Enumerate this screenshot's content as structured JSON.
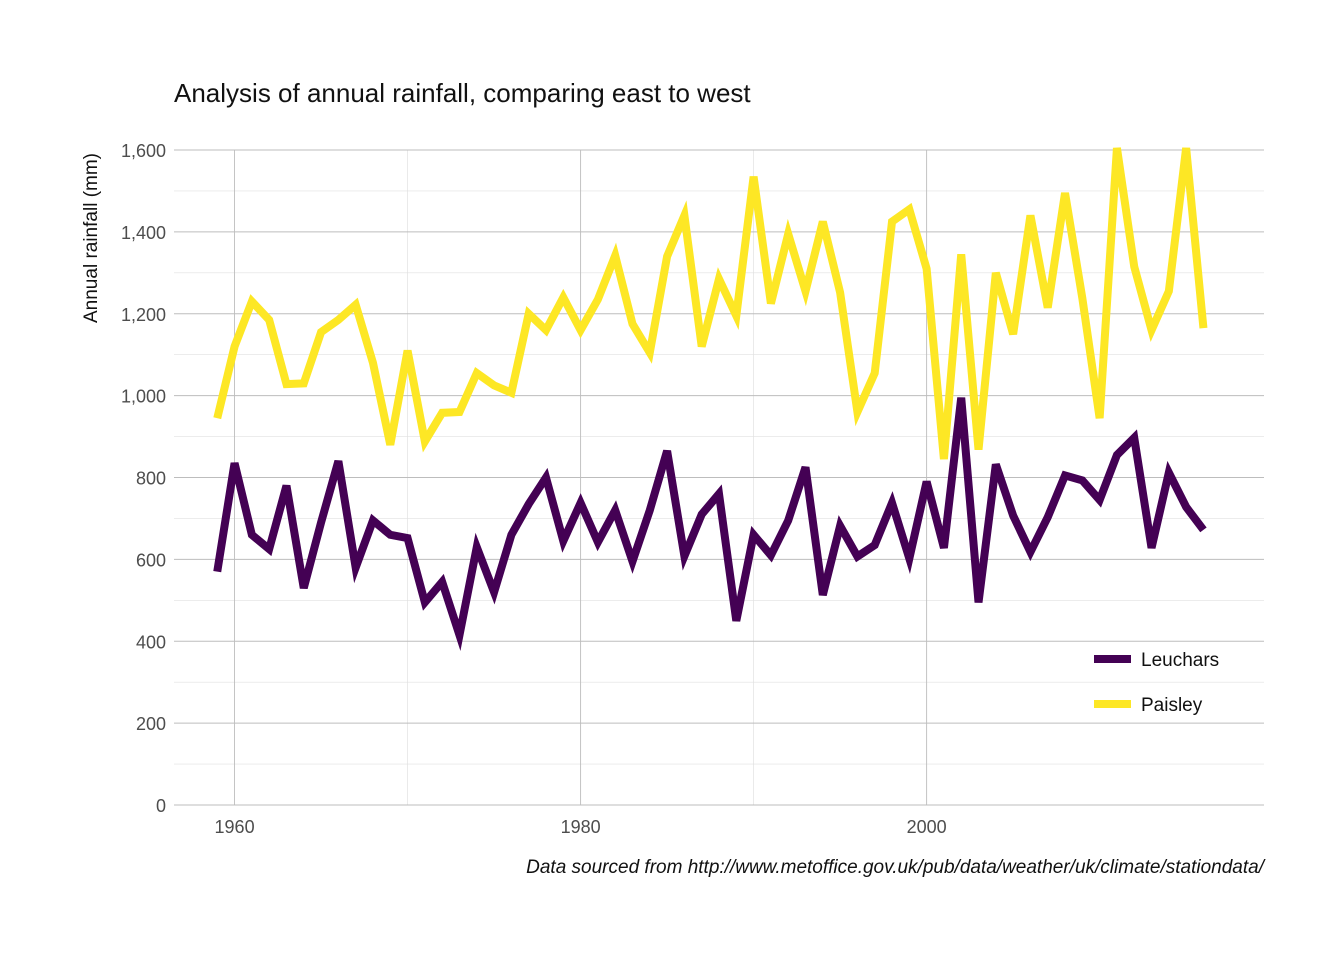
{
  "chart_data": {
    "type": "line",
    "title": "Analysis of annual rainfall, comparing east to west",
    "xlabel": "",
    "ylabel": "Annual rainfall (mm)",
    "caption": "Data sourced from http://www.metoffice.gov.uk/pub/data/weather/uk/climate/stationdata/",
    "xlim": [
      1956.5,
      2019.5
    ],
    "ylim": [
      0,
      1600
    ],
    "x_ticks": [
      1960,
      1980,
      2000
    ],
    "x_tick_labels": [
      "1960",
      "1980",
      "2000"
    ],
    "y_ticks": [
      0,
      200,
      400,
      600,
      800,
      1000,
      1200,
      1400,
      1600
    ],
    "y_tick_labels": [
      "0",
      "200",
      "400",
      "600",
      "800",
      "1,000",
      "1,200",
      "1,400",
      "1,600"
    ],
    "grid": true,
    "legend_position": "bottom-right",
    "x": [
      1959,
      1960,
      1961,
      1962,
      1963,
      1964,
      1965,
      1966,
      1967,
      1968,
      1969,
      1970,
      1971,
      1972,
      1973,
      1974,
      1975,
      1976,
      1977,
      1978,
      1979,
      1980,
      1981,
      1982,
      1983,
      1984,
      1985,
      1986,
      1987,
      1988,
      1989,
      1990,
      1991,
      1992,
      1993,
      1994,
      1995,
      1996,
      1997,
      1998,
      1999,
      2000,
      2001,
      2002,
      2003,
      2004,
      2005,
      2006,
      2007,
      2008,
      2009,
      2010,
      2011,
      2012,
      2013,
      2014,
      2015,
      2016
    ],
    "series": [
      {
        "name": "Leuchars",
        "color": "#440154",
        "values": [
          570,
          835,
          660,
          625,
          780,
          530,
          690,
          840,
          580,
          695,
          660,
          652,
          495,
          545,
          415,
          630,
          520,
          660,
          735,
          800,
          645,
          738,
          642,
          720,
          595,
          720,
          865,
          608,
          710,
          760,
          450,
          660,
          610,
          695,
          825,
          513,
          682,
          607,
          635,
          738,
          602,
          790,
          628,
          995,
          495,
          832,
          707,
          618,
          703,
          805,
          793,
          745,
          855,
          897,
          628,
          812,
          728,
          672
        ]
      },
      {
        "name": "Paisley",
        "color": "#FDE725",
        "values": [
          945,
          1120,
          1230,
          1185,
          1028,
          1030,
          1155,
          1185,
          1222,
          1080,
          880,
          1110,
          888,
          958,
          960,
          1055,
          1025,
          1007,
          1200,
          1160,
          1240,
          1160,
          1235,
          1342,
          1175,
          1105,
          1340,
          1440,
          1120,
          1285,
          1195,
          1535,
          1225,
          1395,
          1255,
          1425,
          1252,
          960,
          1055,
          1425,
          1455,
          1310,
          845,
          1345,
          868,
          1300,
          1150,
          1440,
          1215,
          1495,
          1238,
          945,
          1605,
          1315,
          1160,
          1255,
          1605,
          1165
        ]
      }
    ]
  }
}
